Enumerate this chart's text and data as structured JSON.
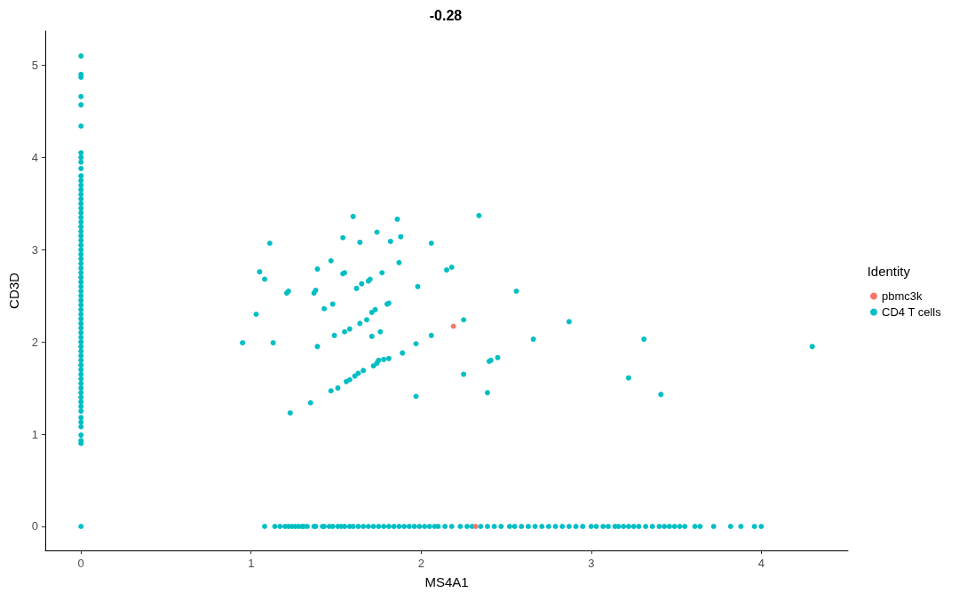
{
  "chart_data": {
    "type": "scatter",
    "title": "-0.28",
    "xlabel": "MS4A1",
    "ylabel": "CD3D",
    "legend_title": "Identity",
    "legend": "right",
    "grid": false,
    "marker": "circle",
    "xlim": [
      -0.21,
      4.51
    ],
    "xticks": [
      0,
      1,
      2,
      3,
      4
    ],
    "ylim": [
      -0.26,
      5.37
    ],
    "yticks": [
      0,
      1,
      2,
      3,
      4,
      5
    ],
    "series": [
      {
        "name": "pbmc3k",
        "color": "#f8766d",
        "x": [
          2.19,
          2.32
        ],
        "values": [
          2.17,
          0
        ]
      },
      {
        "name": "CD4 T cells",
        "color": "#00bfc4",
        "x": [
          0.95,
          1.03,
          1.05,
          1.08,
          1.11,
          1.13,
          1.21,
          1.22,
          1.23,
          1.35,
          1.37,
          1.38,
          1.39,
          1.39,
          1.43,
          1.47,
          1.47,
          1.48,
          1.51,
          1.49,
          1.54,
          1.54,
          1.55,
          1.55,
          1.56,
          1.58,
          1.58,
          1.6,
          1.61,
          1.62,
          1.63,
          1.64,
          1.64,
          1.65,
          1.66,
          1.68,
          1.69,
          1.7,
          1.71,
          1.71,
          1.72,
          1.73,
          1.74,
          1.74,
          1.75,
          1.76,
          1.77,
          1.78,
          1.8,
          1.81,
          1.81,
          1.82,
          1.86,
          1.87,
          1.88,
          1.89,
          1.97,
          1.97,
          1.98,
          2.06,
          2.06,
          2.15,
          2.18,
          2.25,
          2.25,
          2.34,
          2.39,
          2.4,
          2.41,
          2.45,
          2.56,
          2.66,
          2.87,
          3.22,
          3.31,
          3.41,
          4.3,
          1.08,
          1.14,
          1.17,
          1.2,
          1.22,
          1.24,
          1.26,
          1.28,
          1.3,
          1.31,
          1.33,
          1.37,
          1.38,
          1.42,
          1.43,
          1.46,
          1.48,
          1.51,
          1.53,
          1.55,
          1.58,
          1.6,
          1.63,
          1.66,
          1.69,
          1.72,
          1.75,
          1.78,
          1.81,
          1.84,
          1.87,
          1.9,
          1.93,
          1.96,
          1.99,
          2.02,
          2.05,
          2.08,
          2.1,
          2.14,
          2.18,
          2.23,
          2.27,
          2.3,
          2.35,
          2.39,
          2.43,
          2.47,
          2.52,
          2.55,
          2.59,
          2.63,
          2.67,
          2.71,
          2.75,
          2.79,
          2.83,
          2.87,
          2.91,
          2.95,
          3.0,
          3.03,
          3.07,
          3.1,
          3.14,
          3.16,
          3.19,
          3.22,
          3.25,
          3.28,
          3.32,
          3.36,
          3.4,
          3.43,
          3.46,
          3.49,
          3.52,
          3.55,
          3.61,
          3.64,
          3.72,
          3.82,
          3.88,
          3.96,
          4.0,
          0,
          0,
          0,
          0,
          0,
          0,
          0,
          0,
          0,
          0,
          0,
          0,
          0,
          0,
          0,
          0,
          0,
          0,
          0,
          0,
          0,
          0,
          0,
          0,
          0,
          0,
          0,
          0,
          0,
          0,
          0,
          0,
          0,
          0,
          0,
          0,
          0,
          0,
          0,
          0,
          0,
          0,
          0,
          0,
          0,
          0,
          0,
          0,
          0,
          0,
          0,
          0,
          0,
          0,
          0,
          0,
          0,
          0,
          0,
          0,
          0,
          0,
          0,
          0,
          0,
          0,
          0,
          0,
          0
        ],
        "values": [
          1.99,
          2.3,
          2.76,
          2.68,
          3.07,
          1.99,
          2.53,
          2.55,
          1.23,
          1.34,
          2.53,
          2.56,
          2.79,
          1.95,
          2.36,
          2.88,
          1.47,
          2.41,
          1.5,
          2.07,
          3.13,
          2.74,
          2.75,
          2.11,
          1.57,
          1.59,
          2.14,
          3.36,
          1.63,
          2.58,
          1.66,
          3.08,
          2.2,
          2.63,
          1.69,
          2.24,
          2.66,
          2.68,
          2.32,
          2.06,
          1.74,
          2.35,
          1.77,
          3.19,
          1.8,
          2.11,
          2.75,
          1.81,
          2.41,
          2.42,
          1.82,
          3.09,
          3.33,
          2.86,
          3.14,
          1.88,
          1.41,
          1.98,
          2.6,
          2.07,
          3.07,
          2.78,
          2.81,
          2.24,
          1.65,
          3.37,
          1.45,
          1.79,
          1.8,
          1.83,
          2.55,
          2.03,
          2.22,
          1.61,
          2.03,
          1.43,
          1.95,
          0,
          0,
          0,
          0,
          0,
          0,
          0,
          0,
          0,
          0,
          0,
          0,
          0,
          0,
          0,
          0,
          0,
          0,
          0,
          0,
          0,
          0,
          0,
          0,
          0,
          0,
          0,
          0,
          0,
          0,
          0,
          0,
          0,
          0,
          0,
          0,
          0,
          0,
          0,
          0,
          0,
          0,
          0,
          0,
          0,
          0,
          0,
          0,
          0,
          0,
          0,
          0,
          0,
          0,
          0,
          0,
          0,
          0,
          0,
          0,
          0,
          0,
          0,
          0,
          0,
          0,
          0,
          0,
          0,
          0,
          0,
          0,
          0,
          0,
          0,
          0,
          0,
          0,
          0,
          0,
          0,
          0,
          0,
          0,
          0,
          5.1,
          4.9,
          4.87,
          4.66,
          4.57,
          4.34,
          4.05,
          4.0,
          3.95,
          3.88,
          3.8,
          3.75,
          3.7,
          3.65,
          3.6,
          3.55,
          3.5,
          3.45,
          3.4,
          3.35,
          3.3,
          3.25,
          3.2,
          3.15,
          3.1,
          3.05,
          3.0,
          2.95,
          2.9,
          2.85,
          2.8,
          2.75,
          2.7,
          2.65,
          2.6,
          2.55,
          2.5,
          2.45,
          2.4,
          2.35,
          2.3,
          2.25,
          2.2,
          2.15,
          2.1,
          2.05,
          2.0,
          1.95,
          1.9,
          1.85,
          1.8,
          1.75,
          1.7,
          1.65,
          1.6,
          1.55,
          1.5,
          1.45,
          1.4,
          1.35,
          1.3,
          1.25,
          1.18,
          1.13,
          1.08,
          0.99,
          0.93,
          0.9,
          0
        ]
      }
    ]
  }
}
